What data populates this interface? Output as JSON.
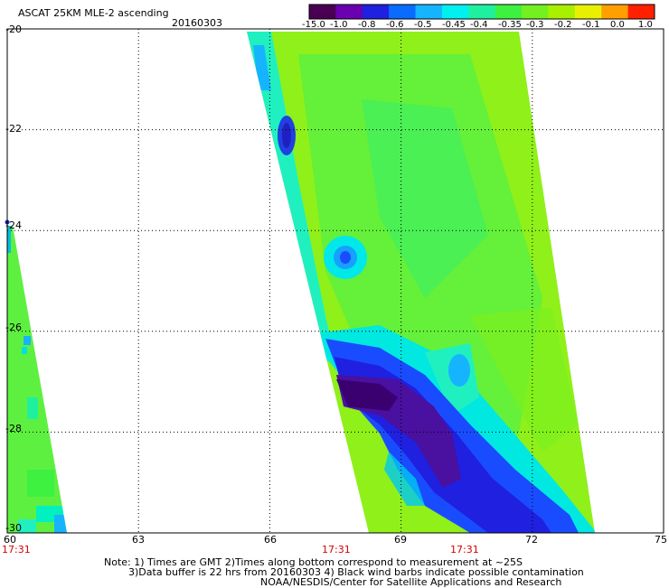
{
  "header": {
    "title": "ASCAT 25KM MLE-2 ascending",
    "date": "20160303"
  },
  "colorbar": {
    "labels": [
      "-15.0",
      "-1.0",
      "-0.8",
      "-0.6",
      "-0.5",
      "-0.45",
      "-0.4",
      "-0.35",
      "-0.3",
      "-0.2",
      "-0.1",
      "0.0",
      "1.0"
    ],
    "colors": [
      "#4a0052",
      "#6a00b0",
      "#2020e0",
      "#0a6cff",
      "#16b4ff",
      "#00f0f0",
      "#1ff0a0",
      "#3ef040",
      "#74f020",
      "#a8f000",
      "#e8f000",
      "#ffa000",
      "#ff2000"
    ]
  },
  "axes": {
    "lat_labels": [
      "-20",
      "-22",
      "-24",
      "-26",
      "-28",
      "-30"
    ],
    "lon_labels": [
      "60",
      "63",
      "66",
      "69",
      "72",
      "75"
    ],
    "lat_range": [
      -30,
      -20
    ],
    "lon_range": [
      60,
      75
    ]
  },
  "times": [
    "17:31",
    "17:31",
    "17:31"
  ],
  "notes": {
    "line1": "Note: 1) Times are GMT 2)Times along bottom correspond to measurement at ~25S",
    "line2": "3)Data buffer is 22 hrs from 20160303 4) Black wind barbs indicate possible contamination",
    "line3": "NOAA/NESDIS/Center for Satellite Applications and Research"
  }
}
